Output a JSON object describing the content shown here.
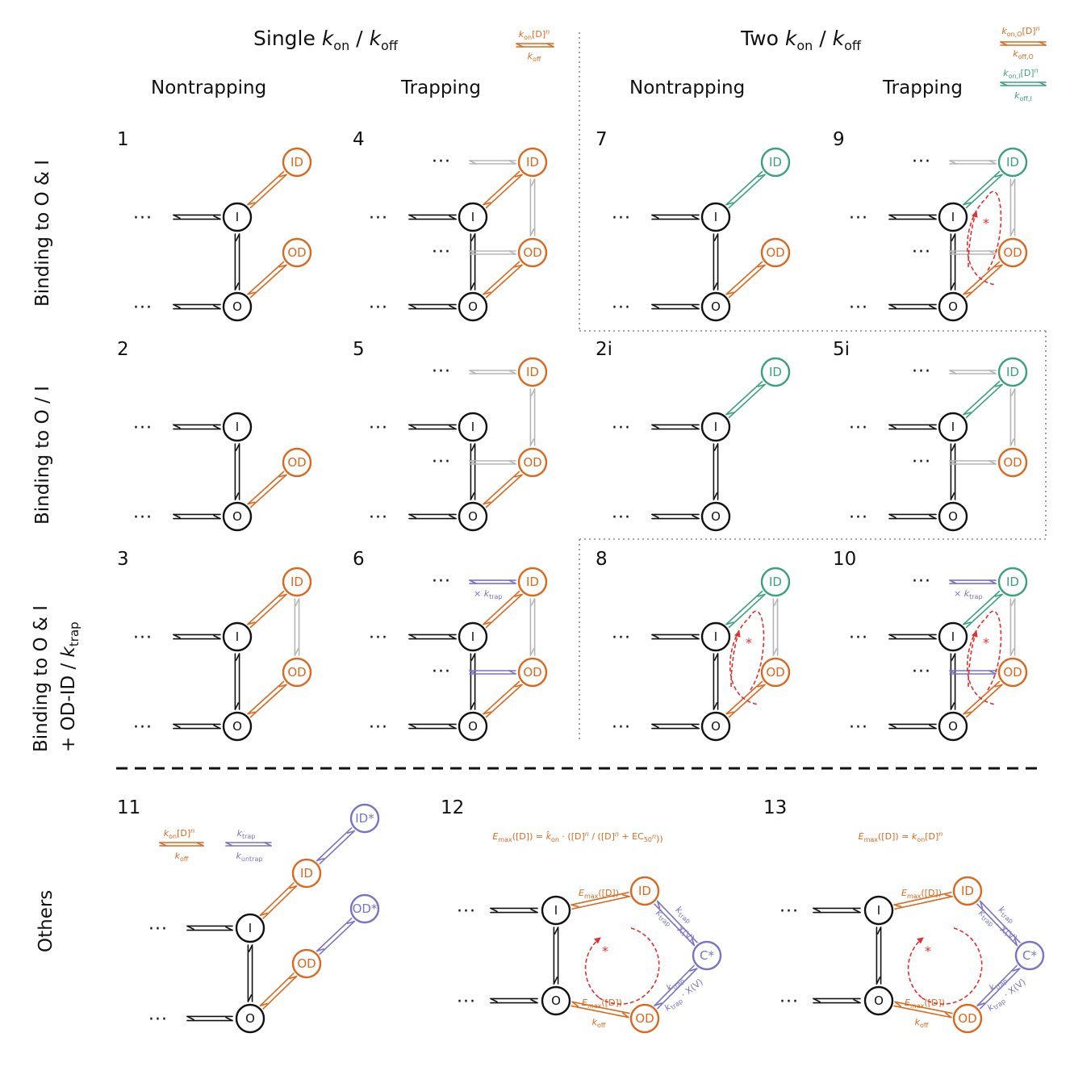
{
  "colors": {
    "black": "#111111",
    "orange": "#d9691f",
    "green": "#3aa080",
    "purple": "#7a73c4",
    "grey": "#b5b5b5",
    "red": "#e03030"
  },
  "headers": {
    "single": "Single kon / koff",
    "two": "Two kon / koff",
    "nontrapping": "Nontrapping",
    "trapping": "Trapping",
    "legend_single_top": "kon[D]n",
    "legend_single_bottom": "koff",
    "legend_two_O_top": "kon,O[D]n",
    "legend_two_O_bottom": "koff,O",
    "legend_two_I_top": "kon,I[D]n",
    "legend_two_I_bottom": "koff,I"
  },
  "row_labels": {
    "row1": "Binding to O & I",
    "row2": "Binding to O / I",
    "row3_line1": "Binding to O & I",
    "row3_line2": "+ OD-ID / ktrap",
    "row4": "Others"
  },
  "panels": [
    {
      "id": "1",
      "trap": false,
      "pos": [
        "col1",
        "row1"
      ],
      "ID": "orange",
      "OD": "orange",
      "eID": "orange",
      "eOD": "orange"
    },
    {
      "id": "4",
      "trap": true,
      "pos": [
        "col2",
        "row1"
      ],
      "ID": "orange",
      "OD": "orange",
      "eID": "orange",
      "eOD": "orange"
    },
    {
      "id": "7",
      "trap": false,
      "pos": [
        "col3",
        "row1"
      ],
      "ID": "green",
      "OD": "orange",
      "eID": "green",
      "eOD": "orange"
    },
    {
      "id": "9",
      "trap": true,
      "pos": [
        "col4",
        "row1"
      ],
      "ID": "green",
      "OD": "orange",
      "eID": "green",
      "eOD": "orange",
      "loop": true
    },
    {
      "id": "2",
      "trap": false,
      "pos": [
        "col1",
        "row2"
      ],
      "ID": null,
      "OD": "orange",
      "eID": null,
      "eOD": "orange"
    },
    {
      "id": "5",
      "trap": true,
      "pos": [
        "col2",
        "row2"
      ],
      "ID": "orange",
      "OD": "orange",
      "eID": null,
      "eOD": "orange"
    },
    {
      "id": "2i",
      "trap": false,
      "pos": [
        "col3",
        "row2"
      ],
      "ID": "green",
      "OD": null,
      "eID": "green",
      "eOD": null
    },
    {
      "id": "5i",
      "trap": true,
      "pos": [
        "col4",
        "row2"
      ],
      "ID": "green",
      "OD": "orange",
      "eID": "green",
      "eOD": null
    },
    {
      "id": "3",
      "trap": false,
      "pos": [
        "col1",
        "row3"
      ],
      "ID": "orange",
      "OD": "orange",
      "eID": "orange",
      "eOD": "orange",
      "odid": true
    },
    {
      "id": "6",
      "trap": true,
      "pos": [
        "col2",
        "row3"
      ],
      "ID": "orange",
      "OD": "orange",
      "eID": "orange",
      "eOD": "orange",
      "ktrap": true
    },
    {
      "id": "8",
      "trap": false,
      "pos": [
        "col3",
        "row3"
      ],
      "ID": "green",
      "OD": "orange",
      "eID": "green",
      "eOD": "orange",
      "odid": true,
      "loop": true
    },
    {
      "id": "10",
      "trap": true,
      "pos": [
        "col4",
        "row3"
      ],
      "ID": "green",
      "OD": "orange",
      "eID": "green",
      "eOD": "orange",
      "ktrap": true,
      "loop": true
    }
  ],
  "state_labels": {
    "I": "I",
    "O": "O",
    "ID": "ID",
    "OD": "OD",
    "IDstar": "ID*",
    "ODstar": "OD*",
    "Cstar": "C*",
    "dots": "···",
    "star": "*"
  },
  "trap_note": "× ktrap",
  "others": {
    "p11": {
      "id": "11",
      "legend1_top": "kon[D]n",
      "legend1_bottom": "koff",
      "legend2_top": "ktrap",
      "legend2_bottom": "kuntrap"
    },
    "p12": {
      "id": "12",
      "equation": "Emax([D]) = k̂on · ([D]n / ([D]n + EC50n))",
      "top_edge": "Emax([D])",
      "bottom_edge_top": "Emax([D])",
      "bottom_edge_bottom": "koff",
      "right_top_a": "ktrap",
      "right_top_b": "ktrap · X(V)",
      "right_bot_a": "ktrap",
      "right_bot_b": "ktrap · X(V)"
    },
    "p13": {
      "id": "13",
      "equation": "Emax([D]) = kon[D]n",
      "top_edge": "Emax([D])",
      "bottom_edge_top": "Emax([D])",
      "bottom_edge_bottom": "koff",
      "right_top_a": "ktrap",
      "right_top_b": "ktrap · X(V)",
      "right_bot_a": "ktrap",
      "right_bot_b": "ktrap · X(V)"
    }
  }
}
